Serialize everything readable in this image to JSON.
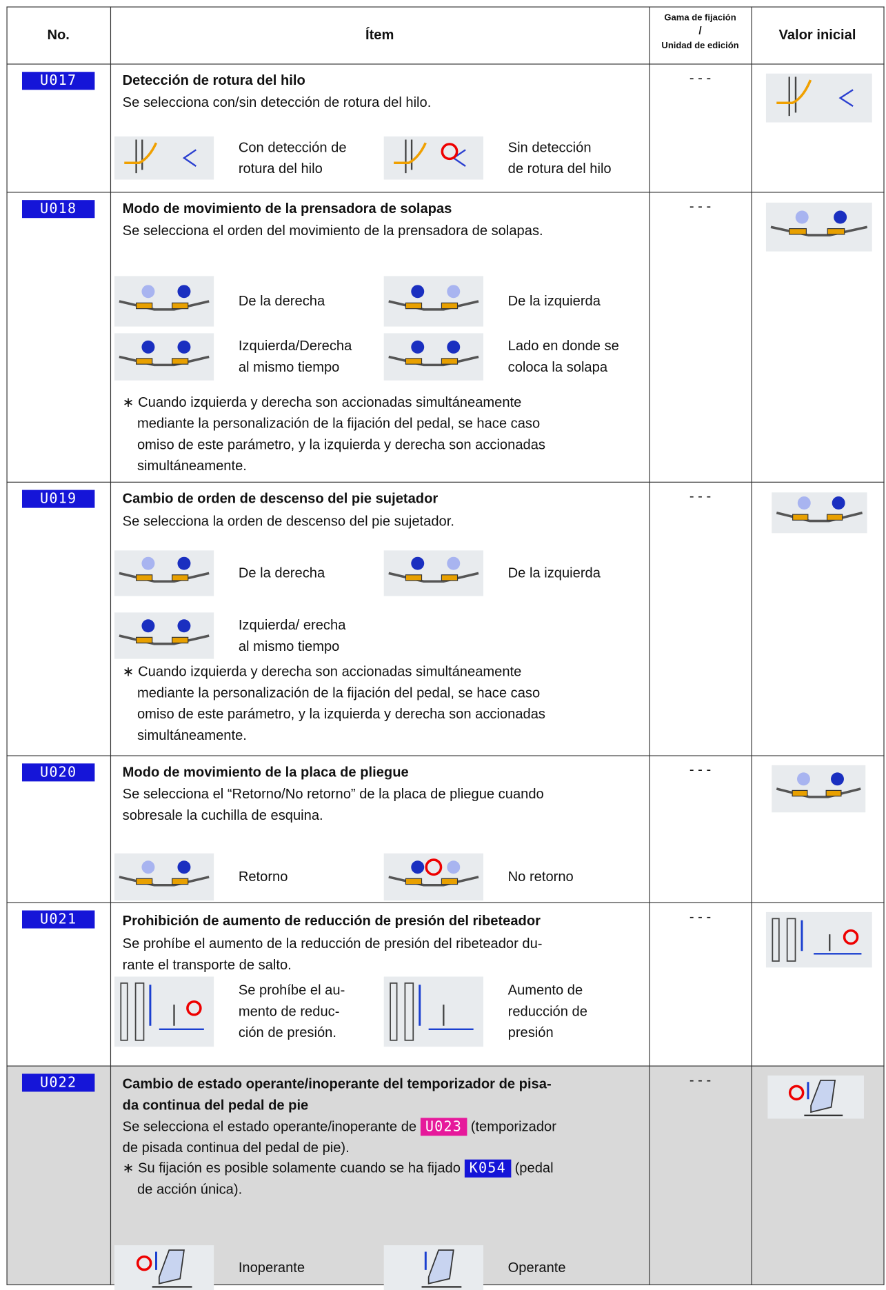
{
  "header": {
    "no": "No.",
    "item": "Ítem",
    "range": [
      "Gama de fijación",
      "/",
      "Unidad de edición"
    ],
    "initial": "Valor inicial"
  },
  "rows": [
    {
      "code": "U017",
      "title": "Detección de rotura del hilo",
      "description": "Se selecciona con/sin detección de rotura del hilo.",
      "options": [
        "Con detección de\nrotura del hilo",
        "Sin detección\nde rotura del hilo"
      ],
      "range": "- - -"
    },
    {
      "code": "U018",
      "title": "Modo de movimiento de la prensadora de solapas",
      "description": "Se selecciona el orden del movimiento de la prensadora de solapas.",
      "options": [
        "De la derecha",
        "De la izquierda",
        "Izquierda/Derecha\nal mismo tiempo",
        "Lado en donde se\ncoloca la solapa"
      ],
      "note": "∗ Cuando izquierda y derecha son accionadas simultáneamente\nmediante la personalización de la fijación del pedal, se hace caso\nomiso de este parámetro, y la izquierda y derecha son accionadas\nsimultáneamente.",
      "range": "- - -"
    },
    {
      "code": "U019",
      "title": "Cambio de orden de descenso del pie sujetador",
      "description": "Se selecciona la orden de descenso del pie sujetador.",
      "options": [
        "De la derecha",
        "De la izquierda",
        "Izquierda/ erecha\nal mismo tiempo"
      ],
      "note": "∗ Cuando izquierda y derecha son accionadas simultáneamente\nmediante la personalización de la fijación del pedal, se hace caso\nomiso de este parámetro, y la izquierda y derecha son accionadas\nsimultáneamente.",
      "range": "- - -"
    },
    {
      "code": "U020",
      "title": "Modo de movimiento de la placa de pliegue",
      "description": "Se selecciona el “Retorno/No retorno” de la placa de pliegue cuando\nsobresale la cuchilla de esquina.",
      "options": [
        "Retorno",
        "No retorno"
      ],
      "range": "- - -"
    },
    {
      "code": "U021",
      "title": "Prohibición de aumento de reducción de presión del ribeteador",
      "description": "Se prohíbe el aumento de la reducción de presión del ribeteador du-\nrante el transporte de salto.",
      "options": [
        "Se prohíbe el au-\nmento de reduc-\nción de presión.",
        "Aumento de\nreducción de\npresión"
      ],
      "range": "- - -"
    },
    {
      "code": "U022",
      "title": "Cambio de estado operante/inoperante del temporizador de pisa-\nda continua del pedal de pie",
      "description": {
        "before": "Se selecciona el estado operante/inoperante de ",
        "badge": "U023",
        "after": " (temporizador\nde pisada continua del pedal de pie)."
      },
      "note": {
        "before": "∗ Su fijación es posible solamente cuando se ha fijado ",
        "badge": "K054",
        "after": " (pedal\nde acción única)."
      },
      "options": [
        "Inoperante",
        "Operante"
      ],
      "range": "- - -"
    }
  ]
}
